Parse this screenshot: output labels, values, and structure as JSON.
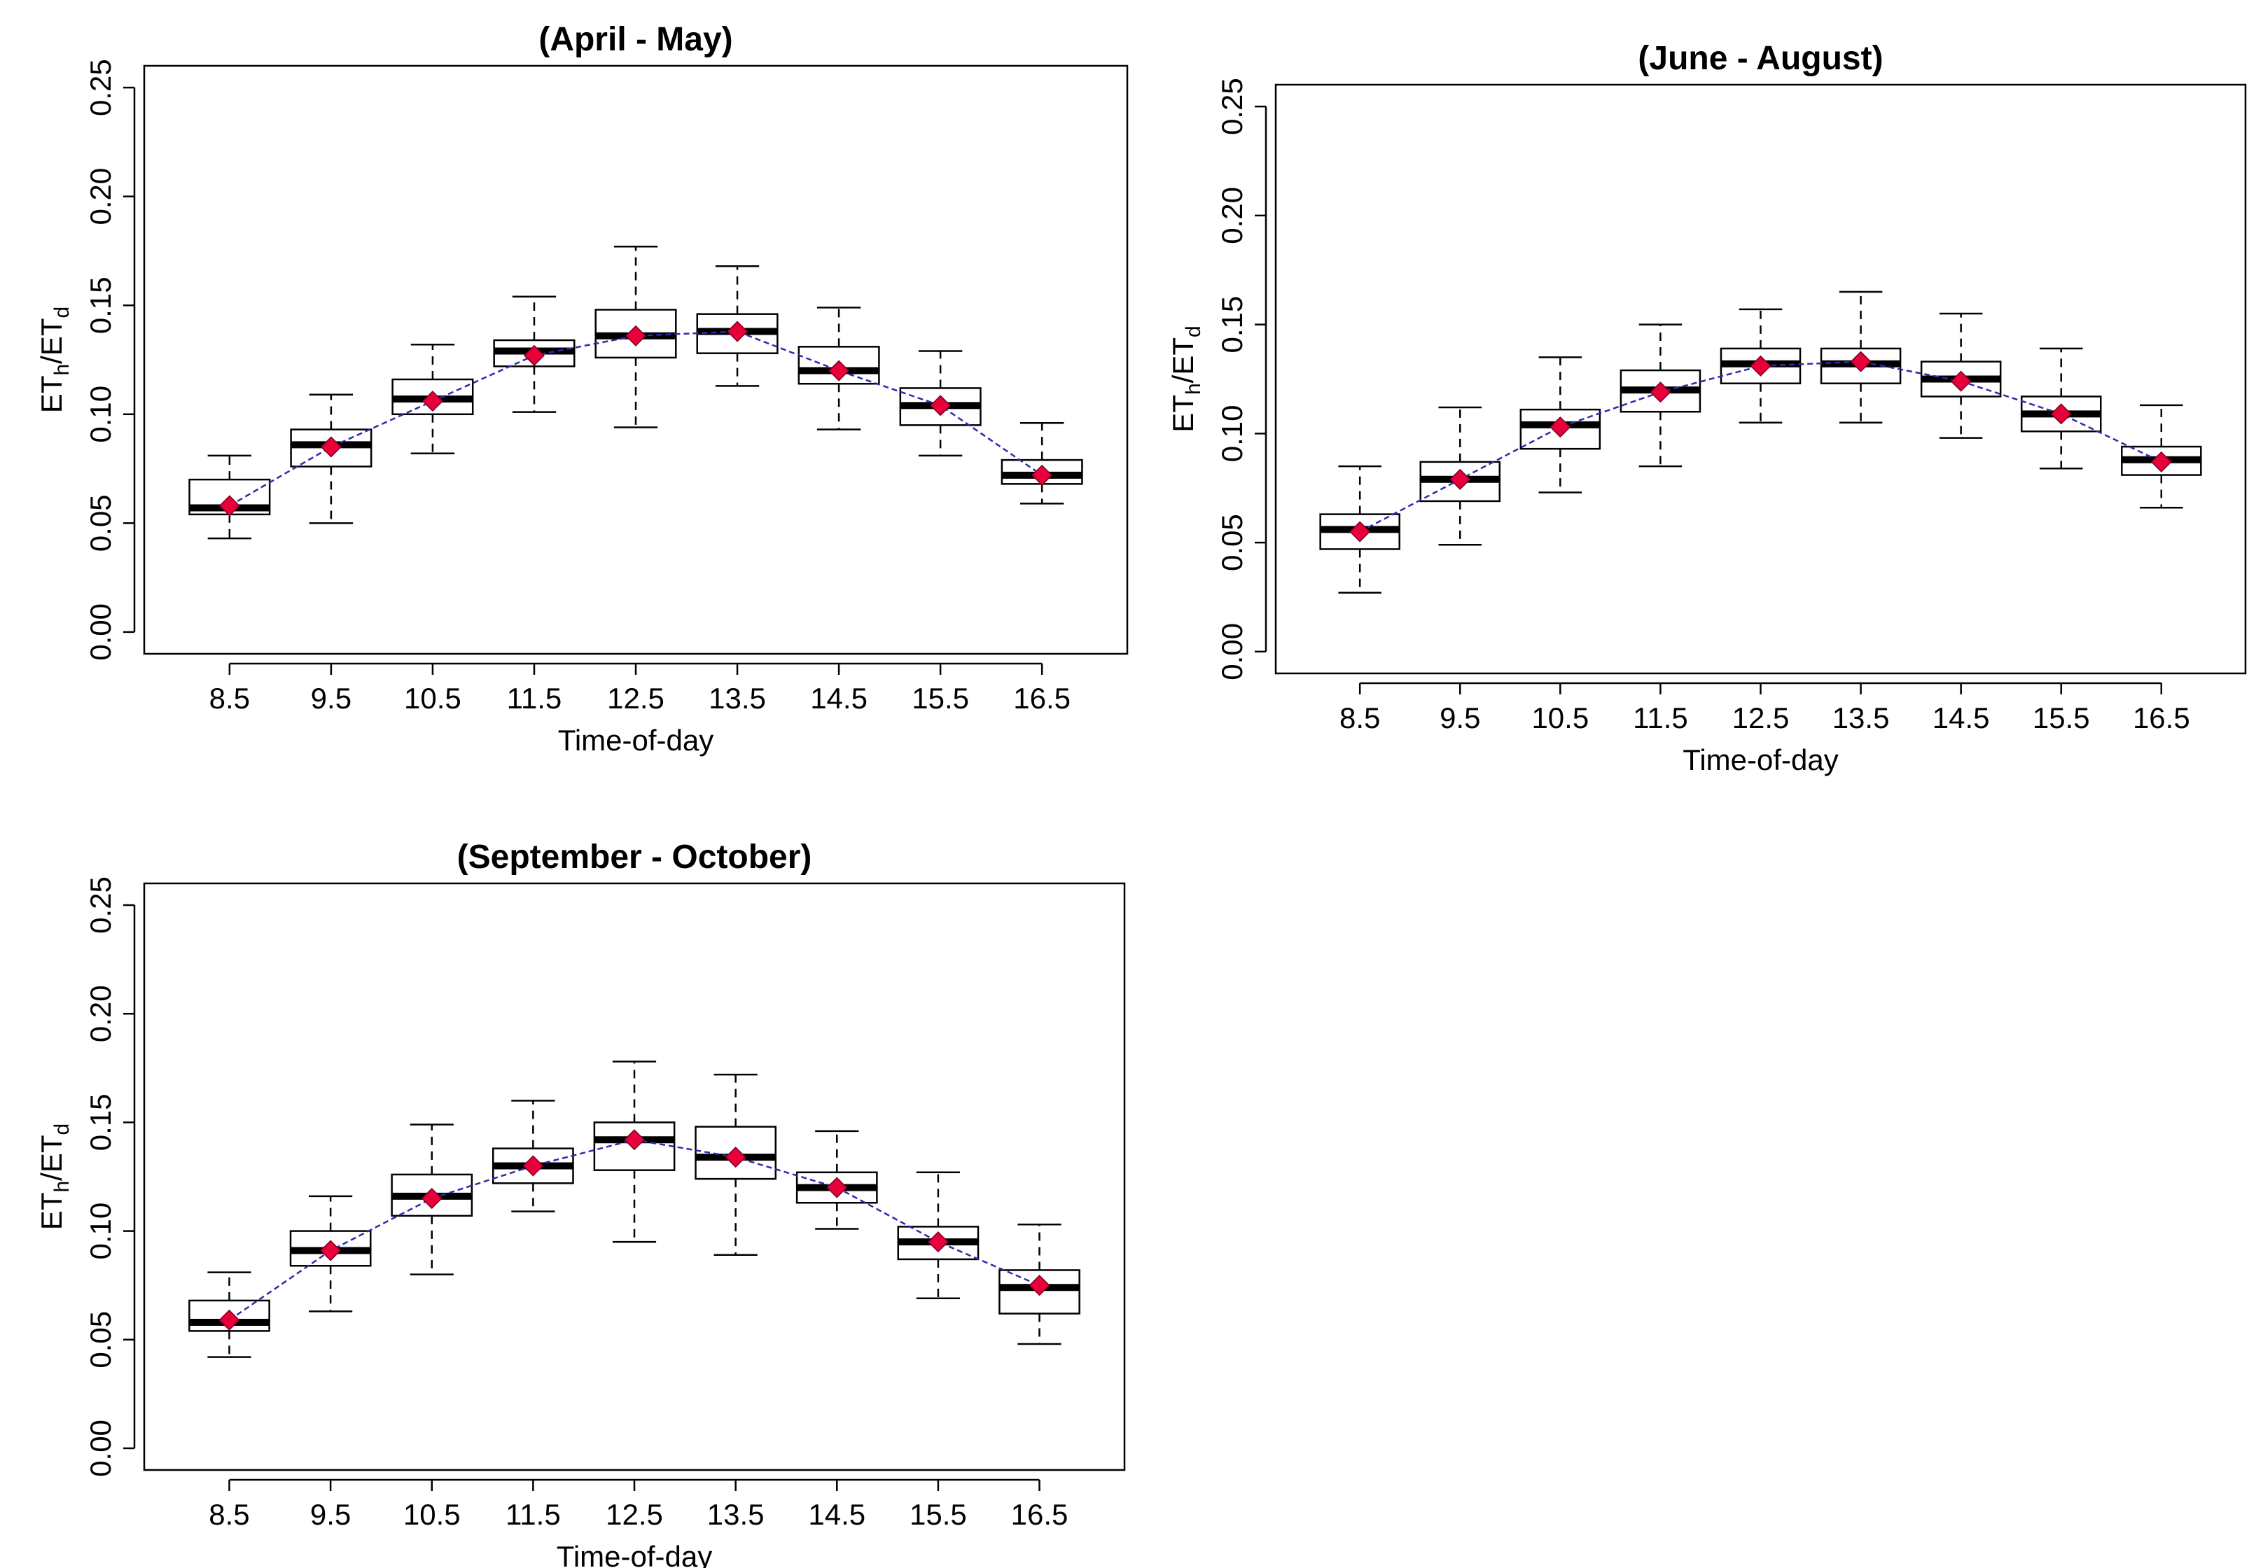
{
  "chart_data": [
    {
      "type": "box",
      "title": "(April - May)",
      "xlabel": "Time-of-day",
      "ylabel": [
        "ET",
        "h",
        "/ET",
        "d"
      ],
      "categories": [
        "8.5",
        "9.5",
        "10.5",
        "11.5",
        "12.5",
        "13.5",
        "14.5",
        "15.5",
        "16.5"
      ],
      "whisker_low": [
        0.043,
        0.05,
        0.082,
        0.101,
        0.094,
        0.113,
        0.093,
        0.081,
        0.059
      ],
      "q1": [
        0.054,
        0.076,
        0.1,
        0.122,
        0.126,
        0.128,
        0.114,
        0.095,
        0.068
      ],
      "median": [
        0.057,
        0.086,
        0.107,
        0.129,
        0.136,
        0.138,
        0.12,
        0.104,
        0.072
      ],
      "q3": [
        0.07,
        0.093,
        0.116,
        0.134,
        0.148,
        0.146,
        0.131,
        0.112,
        0.079
      ],
      "whisker_high": [
        0.081,
        0.109,
        0.132,
        0.154,
        0.177,
        0.168,
        0.149,
        0.129,
        0.096
      ],
      "mean": [
        0.058,
        0.085,
        0.106,
        0.127,
        0.136,
        0.138,
        0.12,
        0.104,
        0.072
      ],
      "mean_color": "#e8003a",
      "line_color": "#2b2bb0",
      "ylim": [
        -0.01,
        0.26
      ],
      "yticks": [
        {
          "value": 0,
          "label": "0.00"
        },
        {
          "value": 0.05,
          "label": "0.05"
        },
        {
          "value": 0.1,
          "label": "0.10"
        },
        {
          "value": 0.15,
          "label": "0.15"
        },
        {
          "value": 0.2,
          "label": "0.20"
        },
        {
          "value": 0.25,
          "label": "0.25"
        }
      ]
    },
    {
      "type": "box",
      "title": "(June - August)",
      "xlabel": "Time-of-day",
      "ylabel": [
        "ET",
        "h",
        "/ET",
        "d"
      ],
      "categories": [
        "8.5",
        "9.5",
        "10.5",
        "11.5",
        "12.5",
        "13.5",
        "14.5",
        "15.5",
        "16.5"
      ],
      "whisker_low": [
        0.027,
        0.049,
        0.073,
        0.085,
        0.105,
        0.105,
        0.098,
        0.084,
        0.066
      ],
      "q1": [
        0.047,
        0.069,
        0.093,
        0.11,
        0.123,
        0.123,
        0.117,
        0.101,
        0.081
      ],
      "median": [
        0.056,
        0.079,
        0.104,
        0.12,
        0.132,
        0.132,
        0.125,
        0.109,
        0.088
      ],
      "q3": [
        0.063,
        0.087,
        0.111,
        0.129,
        0.139,
        0.139,
        0.133,
        0.117,
        0.094
      ],
      "whisker_high": [
        0.085,
        0.112,
        0.135,
        0.15,
        0.157,
        0.165,
        0.155,
        0.139,
        0.113
      ],
      "mean": [
        0.055,
        0.079,
        0.103,
        0.119,
        0.131,
        0.133,
        0.124,
        0.109,
        0.087
      ],
      "mean_color": "#e8003a",
      "line_color": "#2b2bb0",
      "ylim": [
        -0.01,
        0.26
      ],
      "yticks": [
        {
          "value": 0,
          "label": "0.00"
        },
        {
          "value": 0.05,
          "label": "0.05"
        },
        {
          "value": 0.1,
          "label": "0.10"
        },
        {
          "value": 0.15,
          "label": "0.15"
        },
        {
          "value": 0.2,
          "label": "0.20"
        },
        {
          "value": 0.25,
          "label": "0.25"
        }
      ]
    },
    {
      "type": "box",
      "title": "(September - October)",
      "xlabel": "Time-of-day",
      "ylabel": [
        "ET",
        "h",
        "/ET",
        "d"
      ],
      "categories": [
        "8.5",
        "9.5",
        "10.5",
        "11.5",
        "12.5",
        "13.5",
        "14.5",
        "15.5",
        "16.5"
      ],
      "whisker_low": [
        0.042,
        0.063,
        0.08,
        0.109,
        0.095,
        0.089,
        0.101,
        0.069,
        0.048
      ],
      "q1": [
        0.054,
        0.084,
        0.107,
        0.122,
        0.128,
        0.124,
        0.113,
        0.087,
        0.062
      ],
      "median": [
        0.058,
        0.091,
        0.116,
        0.13,
        0.142,
        0.134,
        0.12,
        0.095,
        0.074
      ],
      "q3": [
        0.068,
        0.1,
        0.126,
        0.138,
        0.15,
        0.148,
        0.127,
        0.102,
        0.082
      ],
      "whisker_high": [
        0.081,
        0.116,
        0.149,
        0.16,
        0.178,
        0.172,
        0.146,
        0.127,
        0.103
      ],
      "mean": [
        0.059,
        0.091,
        0.115,
        0.13,
        0.142,
        0.134,
        0.12,
        0.095,
        0.075
      ],
      "mean_color": "#e8003a",
      "line_color": "#2b2bb0",
      "ylim": [
        -0.01,
        0.26
      ],
      "yticks": [
        {
          "value": 0,
          "label": "0.00"
        },
        {
          "value": 0.05,
          "label": "0.05"
        },
        {
          "value": 0.1,
          "label": "0.10"
        },
        {
          "value": 0.15,
          "label": "0.15"
        },
        {
          "value": 0.2,
          "label": "0.20"
        },
        {
          "value": 0.25,
          "label": "0.25"
        }
      ]
    }
  ]
}
